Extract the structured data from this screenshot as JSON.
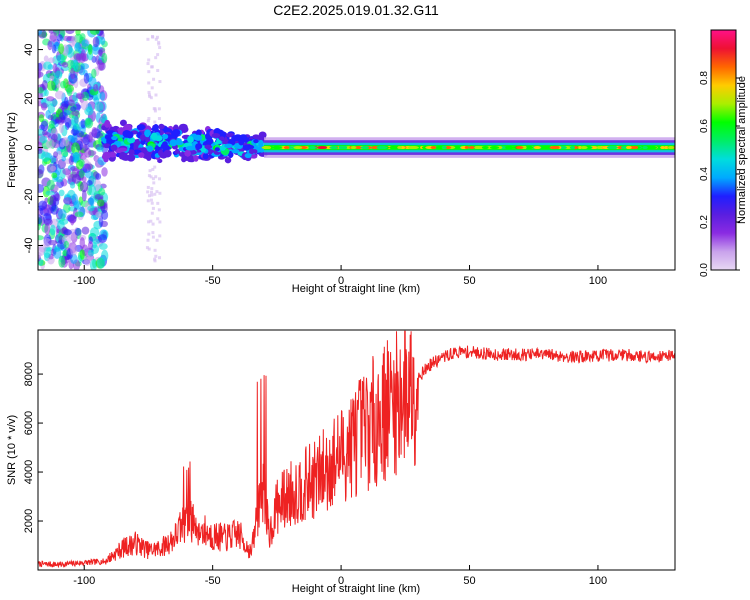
{
  "title": "C2E2.2025.019.01.32.G11",
  "colors": {
    "snr_line": "#ee2222",
    "colormap": [
      "#e8d8f4",
      "#c9a2ec",
      "#8a2be2",
      "#5a1ee0",
      "#1f1fff",
      "#00aaff",
      "#00dddd",
      "#00ee66",
      "#00ff00",
      "#aaee00",
      "#ffcc00",
      "#ff6600",
      "#ee1133",
      "#ff1188"
    ]
  },
  "chart_data": [
    {
      "type": "heatmap",
      "xlabel": "Height of straight line (km)",
      "ylabel": "Frequency (Hz)",
      "xlim": [
        -118,
        130
      ],
      "ylim": [
        -50,
        48
      ],
      "xticks": [
        -100,
        -50,
        0,
        50,
        100
      ],
      "yticks": [
        -40,
        -20,
        0,
        20,
        40
      ],
      "xtick_labels": [
        "-100",
        "-50",
        "0",
        "50",
        "100"
      ],
      "ytick_labels": [
        "-40",
        "-20",
        "0",
        "20",
        "40"
      ],
      "colorbar": {
        "label": "Normalized spectral amplitude",
        "range": [
          0,
          1
        ],
        "ticks": [
          0.0,
          0.2,
          0.4,
          0.6,
          0.8
        ],
        "tick_labels": [
          "0.0",
          "0.2",
          "0.4",
          "0.6",
          "0.8"
        ]
      },
      "bands": [
        {
          "x_from": -118,
          "x_to": -92,
          "center": 0,
          "halfwidth": 48,
          "amplitude": 0.15,
          "note_id": "b1"
        },
        {
          "x_from": -92,
          "x_to": -30,
          "center": 3,
          "halfwidth": 7,
          "amplitude": 0.4
        },
        {
          "x_from": -30,
          "x_to": 130,
          "center": 0,
          "halfwidth": 3,
          "amplitude": 0.85
        }
      ]
    },
    {
      "type": "line",
      "xlabel": "Height of straight line (km)",
      "ylabel": "SNR (10 * v/v)",
      "xlim": [
        -118,
        130
      ],
      "ylim": [
        0,
        9800
      ],
      "xticks": [
        -100,
        -50,
        0,
        50,
        100
      ],
      "yticks": [
        2000,
        4000,
        6000,
        8000
      ],
      "xtick_labels": [
        "-100",
        "-50",
        "0",
        "50",
        "100"
      ],
      "ytick_labels": [
        "2000",
        "4000",
        "6000",
        "8000"
      ],
      "series": [
        {
          "x": [
            -118,
            -110,
            -100,
            -92,
            -85,
            -80,
            -75,
            -70,
            -65,
            -60,
            -55,
            -50,
            -45,
            -40,
            -35,
            -32,
            -30,
            -28,
            -25,
            -20,
            -15,
            -10,
            -5,
            0,
            5,
            10,
            15,
            20,
            25,
            30,
            35,
            40,
            45,
            50,
            60,
            70,
            80,
            90,
            100,
            110,
            120,
            130
          ],
          "y": [
            250,
            220,
            300,
            350,
            900,
            1100,
            800,
            900,
            1300,
            2100,
            1700,
            1400,
            1300,
            1500,
            700,
            2600,
            3100,
            1400,
            2600,
            3100,
            3400,
            3700,
            4200,
            4700,
            5300,
            5800,
            6300,
            6800,
            7300,
            7900,
            8400,
            8700,
            8900,
            8900,
            8800,
            8800,
            8800,
            8700,
            8750,
            8800,
            8700,
            8800
          ]
        }
      ]
    }
  ]
}
